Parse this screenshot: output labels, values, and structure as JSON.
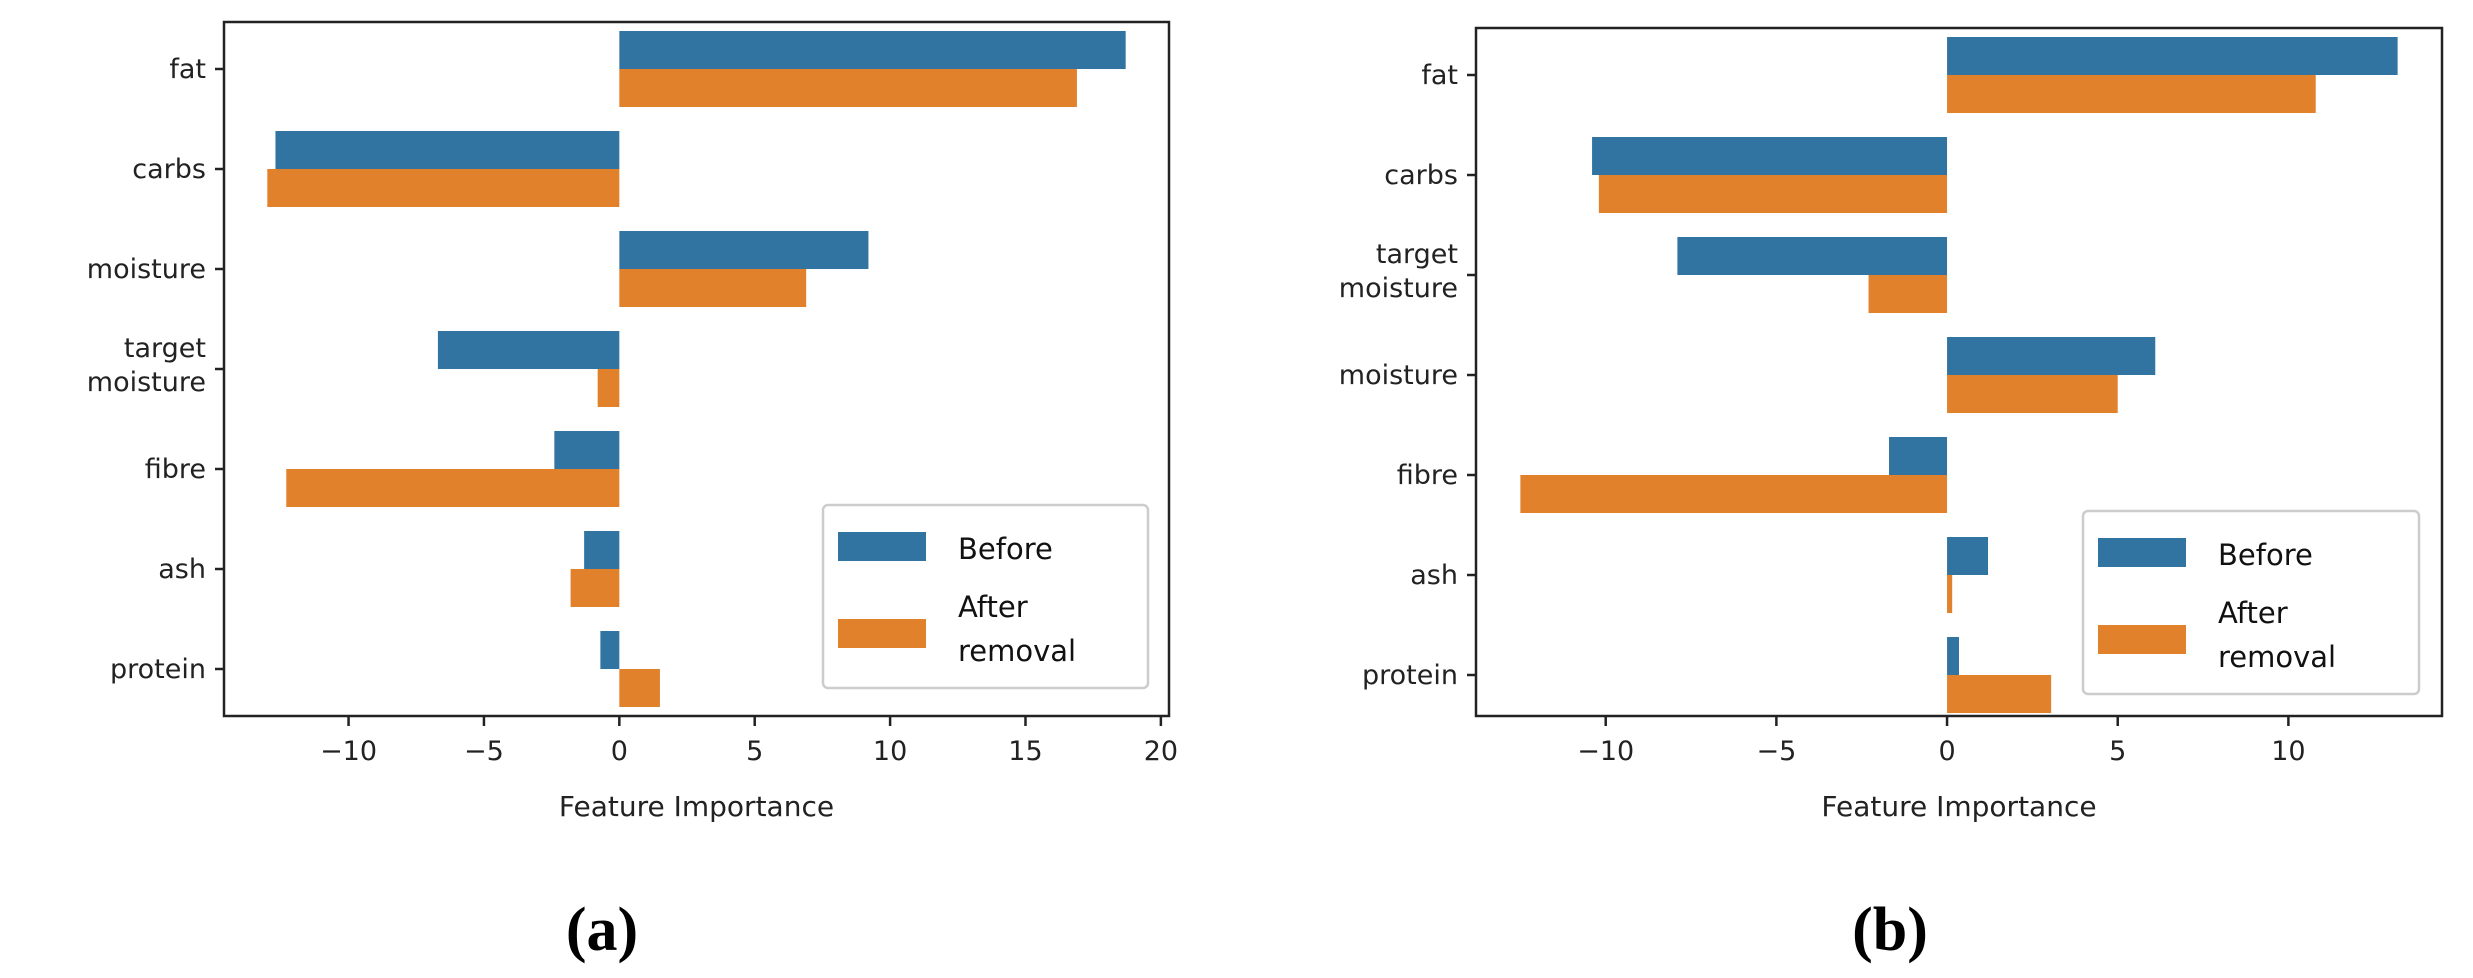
{
  "colors": {
    "Before": "#3274a1",
    "After removal": "#e1812c"
  },
  "chart_data": [
    {
      "type": "bar",
      "orientation": "horizontal",
      "panel_label": "(a)",
      "categories": [
        "fat",
        "carbs",
        "moisture",
        "target moisture",
        "fibre",
        "ash",
        "protein"
      ],
      "series": [
        {
          "name": "Before",
          "values": [
            18.7,
            -12.7,
            9.2,
            -6.7,
            -2.4,
            -1.3,
            -0.7
          ]
        },
        {
          "name": "After removal",
          "values": [
            16.9,
            -13.0,
            6.9,
            -0.8,
            -12.3,
            -1.8,
            1.5
          ]
        }
      ],
      "xlabel": "Feature Importance",
      "ylabel": "",
      "xlim": [
        -14.6,
        20.3
      ],
      "xticks": [
        -10,
        -5,
        0,
        5,
        10,
        15,
        20
      ],
      "xtick_labels": [
        "−10",
        "−5",
        "0",
        "5",
        "10",
        "15",
        "20"
      ],
      "grid": false,
      "legend": "lower-right"
    },
    {
      "type": "bar",
      "orientation": "horizontal",
      "panel_label": "(b)",
      "categories": [
        "fat",
        "carbs",
        "target moisture",
        "moisture",
        "fibre",
        "ash",
        "protein"
      ],
      "series": [
        {
          "name": "Before",
          "values": [
            13.2,
            -10.4,
            -7.9,
            6.1,
            -1.7,
            1.2,
            0.35
          ]
        },
        {
          "name": "After removal",
          "values": [
            10.8,
            -10.2,
            -2.3,
            5.0,
            -12.5,
            0.15,
            3.05
          ]
        }
      ],
      "xlabel": "Feature Importance",
      "ylabel": "",
      "xlim": [
        -13.8,
        14.5
      ],
      "xticks": [
        -10,
        -5,
        0,
        5,
        10
      ],
      "xtick_labels": [
        "−10",
        "−5",
        "0",
        "5",
        "10"
      ],
      "grid": false,
      "legend": "lower-right"
    }
  ]
}
